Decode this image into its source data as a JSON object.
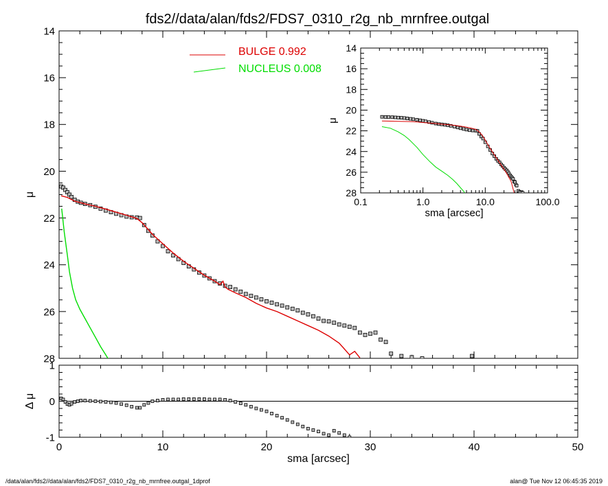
{
  "title": "fds2//data/alan/fds2/FDS7_0310_r2g_nb_mrnfree.outgal",
  "footer_left": "/data/alan/fds2//data/alan/fds2/FDS7_0310_r2g_nb_mrnfree.outgal_1dprof",
  "footer_right": "alan@  Tue Nov 12 06:45:35 2019",
  "colors": {
    "bulge": "#dd0000",
    "nucleus": "#00dd00",
    "data": "#000000",
    "data_fill": "#bbbbbb",
    "axes": "#000000"
  },
  "chart_data": [
    {
      "id": "main",
      "type": "scatter",
      "xlabel": "",
      "ylabel": "μ",
      "xlim": [
        0,
        50
      ],
      "ylim": [
        28,
        14
      ],
      "xticks": [
        0,
        10,
        20,
        30,
        40,
        50
      ],
      "yticks": [
        14,
        16,
        18,
        20,
        22,
        24,
        26,
        28
      ],
      "ytick_labels": [
        "14",
        "16",
        "18",
        "20",
        "22",
        "24",
        "26",
        "28"
      ],
      "legend": [
        {
          "label": "BULGE  0.992",
          "color": "#dd0000"
        },
        {
          "label": "NUCLEUS  0.008",
          "color": "#00dd00"
        }
      ],
      "series": [
        {
          "role": "data",
          "style": "squares",
          "x": [
            0.2,
            0.4,
            0.6,
            0.8,
            1.0,
            1.2,
            1.5,
            1.8,
            2.1,
            2.5,
            3.0,
            3.5,
            4.0,
            4.5,
            5.0,
            5.5,
            6.0,
            6.5,
            7.0,
            7.5,
            7.8,
            8.2,
            8.6,
            9.0,
            9.5,
            10.0,
            10.5,
            11.0,
            11.5,
            12.0,
            12.5,
            13.0,
            13.5,
            14.0,
            14.5,
            15.0,
            15.5,
            16.0,
            16.5,
            17.0,
            17.5,
            18.0,
            18.5,
            19.0,
            19.5,
            20.0,
            20.5,
            21.0,
            21.5,
            22.0,
            22.5,
            23.0,
            23.5,
            24.0,
            24.5,
            25.0,
            25.5,
            26.0,
            26.5,
            27.0,
            27.5,
            28.0,
            28.5,
            29.0,
            29.5,
            30.0,
            30.5,
            31.0,
            31.5,
            32.0,
            33.0,
            34.0,
            35.0,
            39.8
          ],
          "y": [
            20.65,
            20.7,
            20.8,
            20.9,
            21.0,
            21.1,
            21.22,
            21.3,
            21.35,
            21.4,
            21.45,
            21.52,
            21.6,
            21.68,
            21.75,
            21.82,
            21.88,
            21.94,
            21.97,
            21.98,
            22.0,
            22.3,
            22.55,
            22.75,
            23.0,
            23.2,
            23.42,
            23.6,
            23.76,
            23.92,
            24.07,
            24.2,
            24.33,
            24.46,
            24.58,
            24.7,
            24.8,
            24.9,
            24.95,
            25.05,
            25.15,
            25.25,
            25.33,
            25.4,
            25.48,
            25.56,
            25.62,
            25.69,
            25.75,
            25.82,
            25.88,
            25.95,
            26.05,
            26.12,
            26.2,
            26.3,
            26.4,
            26.42,
            26.48,
            26.55,
            26.6,
            26.65,
            26.7,
            26.9,
            27.0,
            26.95,
            26.9,
            27.2,
            27.3,
            27.8,
            27.9,
            27.95,
            28.0,
            27.9
          ]
        },
        {
          "role": "fit",
          "name": "BULGE",
          "style": "line",
          "color": "#dd0000",
          "x": [
            0.2,
            0.8,
            1.5,
            2.5,
            3.5,
            4.5,
            5.5,
            6.5,
            7.5,
            8.0,
            8.5,
            9.0,
            10.0,
            11.0,
            12.0,
            13.0,
            14.0,
            15.0,
            15.5,
            15.8,
            16.0,
            16.3,
            17.0,
            18.0,
            19.0,
            20.0,
            21.0,
            22.0,
            23.0,
            24.0,
            25.0,
            26.0,
            27.0,
            27.5,
            28.0,
            28.5,
            29.0
          ],
          "y": [
            21.05,
            21.12,
            21.28,
            21.4,
            21.5,
            21.62,
            21.75,
            21.88,
            22.02,
            22.2,
            22.45,
            22.7,
            23.1,
            23.5,
            23.85,
            24.15,
            24.45,
            24.7,
            24.85,
            24.7,
            24.95,
            25.05,
            25.2,
            25.4,
            25.65,
            25.85,
            26.0,
            26.2,
            26.4,
            26.6,
            26.8,
            27.05,
            27.35,
            27.6,
            27.85,
            27.7,
            27.98
          ]
        },
        {
          "role": "fit",
          "name": "NUCLEUS",
          "style": "line",
          "color": "#00dd00",
          "x": [
            0.25,
            0.5,
            0.8,
            1.0,
            1.3,
            1.6,
            2.0,
            2.5,
            3.0,
            3.5,
            4.0,
            4.5,
            4.7
          ],
          "y": [
            21.6,
            22.6,
            23.6,
            24.3,
            25.0,
            25.5,
            25.9,
            26.3,
            26.7,
            27.1,
            27.5,
            27.85,
            28.0
          ]
        }
      ]
    },
    {
      "id": "residual",
      "type": "scatter",
      "xlabel": "sma [arcsec]",
      "ylabel": "Δ μ",
      "xlim": [
        0,
        50
      ],
      "ylim": [
        -1,
        1
      ],
      "xticks": [
        0,
        10,
        20,
        30,
        40,
        50
      ],
      "yticks": [
        1,
        0,
        -1
      ],
      "ytick_labels": [
        "1",
        "0",
        "-1"
      ],
      "zero_line": true,
      "series": [
        {
          "role": "data",
          "style": "squares",
          "x": [
            0.2,
            0.4,
            0.6,
            0.8,
            1.0,
            1.2,
            1.5,
            1.8,
            2.1,
            2.5,
            3.0,
            3.5,
            4.0,
            4.5,
            5.0,
            5.5,
            6.0,
            6.5,
            7.0,
            7.5,
            7.8,
            8.2,
            8.6,
            9.0,
            9.5,
            10.0,
            10.5,
            11.0,
            11.5,
            12.0,
            12.5,
            13.0,
            13.5,
            14.0,
            14.5,
            15.0,
            15.5,
            16.0,
            16.5,
            17.0,
            17.5,
            18.0,
            18.5,
            19.0,
            19.5,
            20.0,
            20.5,
            21.0,
            21.5,
            22.0,
            22.5,
            23.0,
            23.5,
            24.0,
            24.5,
            25.0,
            25.5,
            26.0,
            26.5,
            27.0,
            27.5,
            28.0
          ],
          "y": [
            0.08,
            0.05,
            -0.02,
            -0.08,
            -0.1,
            -0.07,
            -0.02,
            0.0,
            0.02,
            0.02,
            0.01,
            0.0,
            -0.01,
            -0.02,
            -0.03,
            -0.05,
            -0.08,
            -0.11,
            -0.15,
            -0.18,
            -0.18,
            -0.1,
            -0.05,
            0.0,
            0.02,
            0.04,
            0.05,
            0.05,
            0.05,
            0.06,
            0.06,
            0.06,
            0.06,
            0.06,
            0.05,
            0.05,
            0.05,
            0.04,
            0.02,
            -0.02,
            -0.06,
            -0.1,
            -0.15,
            -0.2,
            -0.24,
            -0.28,
            -0.34,
            -0.4,
            -0.46,
            -0.52,
            -0.58,
            -0.64,
            -0.7,
            -0.76,
            -0.8,
            -0.84,
            -0.9,
            -0.94,
            -0.82,
            -0.88,
            -0.94,
            -1.0
          ]
        }
      ]
    },
    {
      "id": "inset",
      "type": "scatter",
      "xscale": "log",
      "xlabel": "sma [arcsec]",
      "ylabel": "μ",
      "xlim": [
        0.1,
        100
      ],
      "ylim": [
        28,
        14
      ],
      "xticks": [
        0.1,
        1.0,
        10.0,
        100.0
      ],
      "xtick_labels": [
        "0.1",
        "1.0",
        "10.0",
        "100.0"
      ],
      "yticks": [
        14,
        16,
        18,
        20,
        22,
        24,
        26,
        28
      ],
      "ytick_labels": [
        "14",
        "16",
        "18",
        "20",
        "22",
        "24",
        "26",
        "28"
      ],
      "series": [
        {
          "role": "data",
          "style": "squares",
          "x": [
            0.22,
            0.25,
            0.28,
            0.32,
            0.36,
            0.4,
            0.45,
            0.5,
            0.56,
            0.63,
            0.7,
            0.8,
            0.9,
            1.0,
            1.1,
            1.25,
            1.4,
            1.6,
            1.8,
            2.0,
            2.25,
            2.5,
            2.8,
            3.2,
            3.6,
            4.0,
            4.5,
            5.0,
            5.6,
            6.3,
            7.0,
            7.5,
            8.0,
            8.6,
            9.2,
            10.0,
            11.0,
            12.0,
            13.0,
            14.0,
            15.0,
            16.0,
            17.0,
            18.0,
            19.0,
            20.0,
            21.0,
            22.0,
            23.0,
            24.0,
            25.0,
            26.0,
            27.0,
            28.0,
            29.0,
            30.0,
            31.0,
            32.0,
            34.0,
            36.0,
            38.0,
            40.0
          ],
          "y": [
            20.65,
            20.66,
            20.67,
            20.68,
            20.7,
            20.72,
            20.74,
            20.76,
            20.8,
            20.84,
            20.88,
            20.93,
            20.98,
            21.03,
            21.08,
            21.15,
            21.22,
            21.3,
            21.35,
            21.38,
            21.42,
            21.46,
            21.52,
            21.6,
            21.68,
            21.75,
            21.82,
            21.88,
            21.94,
            21.97,
            21.98,
            22.0,
            22.3,
            22.55,
            22.75,
            23.1,
            23.5,
            23.85,
            24.2,
            24.45,
            24.7,
            24.9,
            25.05,
            25.25,
            25.4,
            25.56,
            25.69,
            25.82,
            25.95,
            26.12,
            26.3,
            26.42,
            26.55,
            26.65,
            26.9,
            26.95,
            27.2,
            27.3,
            27.8,
            27.9,
            27.95,
            28.0
          ]
        },
        {
          "role": "fit",
          "name": "BULGE",
          "style": "line",
          "color": "#dd0000",
          "x": [
            0.22,
            0.4,
            0.7,
            1.0,
            1.5,
            2.0,
            3.0,
            4.0,
            5.0,
            6.0,
            7.0,
            8.0,
            9.0,
            10.0,
            12.0,
            15.0,
            18.0,
            22.0,
            26.0,
            29.0
          ],
          "y": [
            21.05,
            21.08,
            21.12,
            21.2,
            21.28,
            21.36,
            21.45,
            21.55,
            21.65,
            21.75,
            21.85,
            22.1,
            22.45,
            22.9,
            23.7,
            24.6,
            25.3,
            26.1,
            26.9,
            27.98
          ]
        },
        {
          "role": "fit",
          "name": "NUCLEUS",
          "style": "line",
          "color": "#00dd00",
          "x": [
            0.22,
            0.3,
            0.4,
            0.5,
            0.6,
            0.8,
            1.0,
            1.3,
            1.6,
            2.0,
            2.5,
            3.0,
            3.5,
            4.0,
            4.5,
            4.7
          ],
          "y": [
            21.6,
            21.75,
            22.1,
            22.45,
            22.85,
            23.6,
            24.3,
            25.0,
            25.5,
            25.9,
            26.3,
            26.7,
            27.1,
            27.5,
            27.85,
            28.0
          ]
        }
      ]
    }
  ]
}
